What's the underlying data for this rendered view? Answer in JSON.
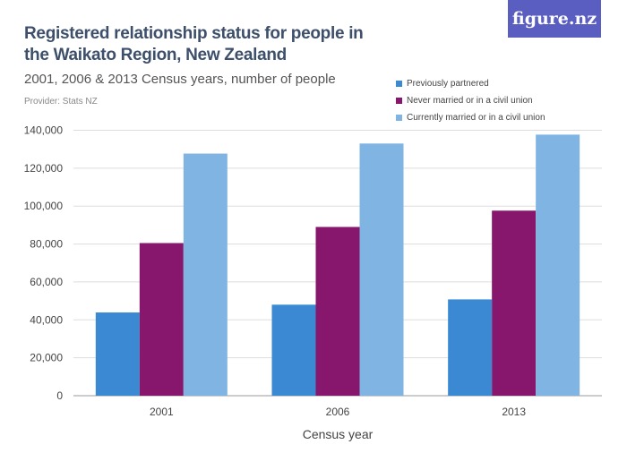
{
  "title": "Registered relationship status for people in the Waikato Region, New Zealand",
  "subtitle": "2001, 2006 & 2013 Census years, number of people",
  "provider": "Provider: Stats NZ",
  "logo": "figure.nz",
  "chart_data": {
    "type": "bar",
    "categories": [
      "2001",
      "2006",
      "2013"
    ],
    "xlabel": "Census year",
    "ylabel": "",
    "ylim": [
      0,
      140000
    ],
    "yticks": [
      0,
      20000,
      40000,
      60000,
      80000,
      100000,
      120000,
      140000
    ],
    "ytick_labels": [
      "0",
      "20,000",
      "40,000",
      "60,000",
      "80,000",
      "100,000",
      "120,000",
      "140,000"
    ],
    "grid": true,
    "legend_position": "top-right",
    "series": [
      {
        "name": "Previously partnered",
        "color": "#3a89d2",
        "values": [
          43900,
          48000,
          50800
        ]
      },
      {
        "name": "Never married or in a civil union",
        "color": "#87166d",
        "values": [
          80500,
          89000,
          97600
        ]
      },
      {
        "name": "Currently married or in a civil union",
        "color": "#80b4e3",
        "values": [
          127700,
          133000,
          137700
        ]
      }
    ]
  }
}
